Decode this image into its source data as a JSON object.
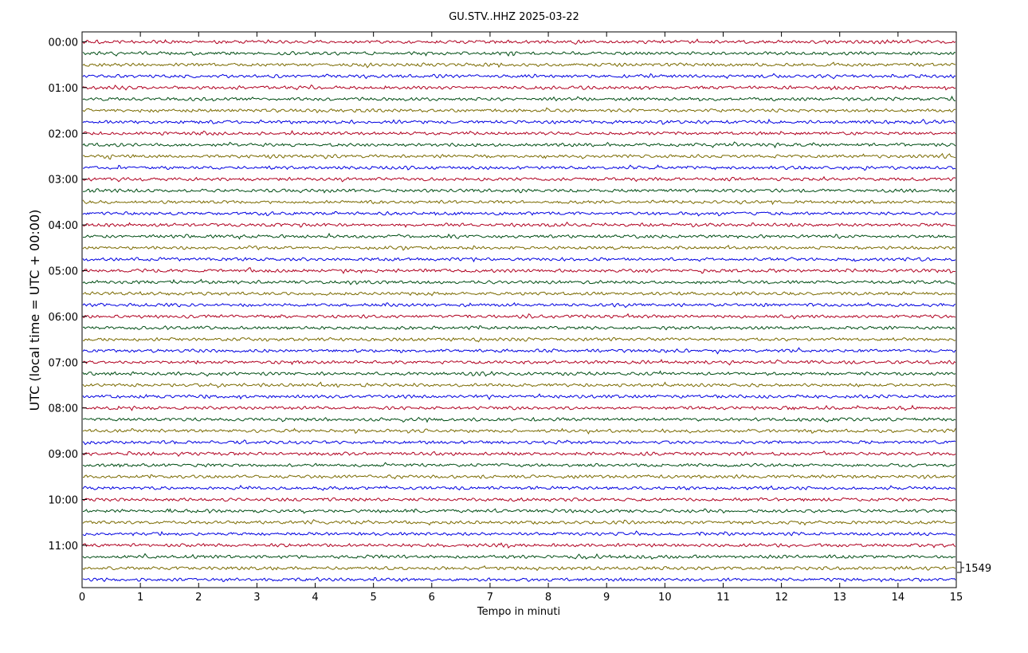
{
  "chart_data": {
    "type": "line",
    "title": "GU.STV..HHZ 2025-03-22",
    "xlabel": "Tempo in minuti",
    "ylabel": "UTC (local time = UTC + 00:00)",
    "xlim": [
      0,
      15
    ],
    "x_ticks": [
      "0",
      "1",
      "2",
      "3",
      "4",
      "5",
      "6",
      "7",
      "8",
      "9",
      "10",
      "11",
      "12",
      "13",
      "14",
      "15"
    ],
    "y_tick_labels": [
      "00:00",
      "01:00",
      "02:00",
      "03:00",
      "04:00",
      "05:00",
      "06:00",
      "07:00",
      "08:00",
      "09:00",
      "10:00",
      "11:00"
    ],
    "traces_per_hour": 4,
    "trace_count": 48,
    "trace_minutes": 15,
    "trace_colors": [
      "#b00020",
      "#004d14",
      "#7a6a00",
      "#0000e0"
    ],
    "scale_label": "1549",
    "grid": false,
    "legend": "none"
  }
}
